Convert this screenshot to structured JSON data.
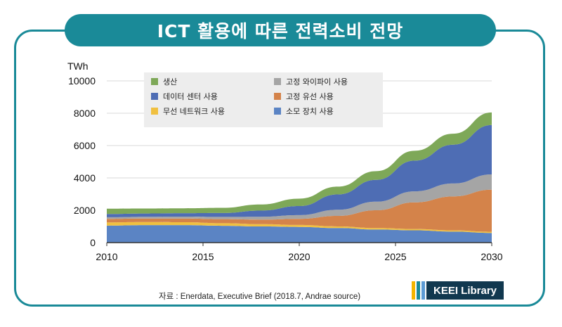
{
  "chart_data": {
    "type": "area",
    "stacked": true,
    "title": "ICT  활용에 따른 전력소비 전망",
    "ylabel": "TWh",
    "xlabel": "",
    "xlim": [
      2010,
      2030
    ],
    "ylim": [
      0,
      10000
    ],
    "x": [
      2010,
      2012,
      2014,
      2016,
      2018,
      2020,
      2022,
      2024,
      2026,
      2028,
      2030
    ],
    "x_ticks": [
      2010,
      2015,
      2020,
      2025,
      2030
    ],
    "y_ticks": [
      0,
      2000,
      4000,
      6000,
      8000,
      10000
    ],
    "grid": "horizontal",
    "legend_position": "top-left",
    "series": [
      {
        "name": "소모  장치 사용",
        "color": "#5b84c4",
        "values": [
          1050,
          1080,
          1080,
          1040,
          1000,
          970,
          900,
          810,
          760,
          680,
          600
        ]
      },
      {
        "name": "무선 네트워크 사용",
        "color": "#f0c040",
        "values": [
          200,
          190,
          180,
          160,
          140,
          120,
          100,
          90,
          80,
          75,
          70
        ]
      },
      {
        "name": "고정 유선 사용",
        "color": "#d4834a",
        "values": [
          220,
          220,
          230,
          250,
          280,
          380,
          650,
          1100,
          1650,
          2100,
          2600
        ]
      },
      {
        "name": "고정 와이파이 사용",
        "color": "#a5a5a5",
        "values": [
          100,
          110,
          120,
          140,
          180,
          230,
          380,
          530,
          680,
          800,
          950
        ]
      },
      {
        "name": "데이터 센터 사용",
        "color": "#4e6db4",
        "values": [
          200,
          200,
          210,
          240,
          380,
          560,
          950,
          1350,
          1900,
          2400,
          3050
        ]
      },
      {
        "name": "생산",
        "color": "#7ea858",
        "values": [
          330,
          310,
          300,
          320,
          380,
          460,
          480,
          540,
          610,
          680,
          780
        ]
      }
    ],
    "legend_order": [
      "생산",
      "고정 와이파이 사용",
      "데이터 센터 사용",
      "고정 유선 사용",
      "무선 네트워크 사용",
      "소모  장치 사용"
    ]
  },
  "source_text": "자료 :  Enerdata, Executive Brief (2018.7, Andrae source)",
  "logo_text": "KEEI Library",
  "colors": {
    "frame": "#1a8a98",
    "logo_bg": "#11384f",
    "legend_bg": "#ededed",
    "logo_bars": [
      "#f2b400",
      "#1a8a98",
      "#5b9bd5"
    ]
  }
}
